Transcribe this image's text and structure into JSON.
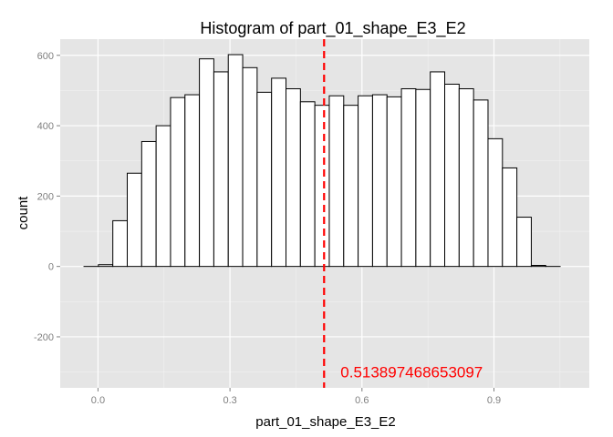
{
  "chart_data": {
    "type": "bar",
    "title": "Histogram of  part_01_shape_E3_E2",
    "xlabel": "part_01_shape_E3_E2",
    "ylabel": "count",
    "xlim": [
      -0.0859,
      1.1167
    ],
    "ylim": [
      -345,
      646
    ],
    "x_ticks": [
      0.0,
      0.3,
      0.6,
      0.9
    ],
    "x_tick_labels": [
      "0.0",
      "0.3",
      "0.6",
      "0.9"
    ],
    "y_ticks": [
      -200,
      0,
      200,
      400,
      600
    ],
    "y_tick_labels": [
      "-200",
      "0",
      "200",
      "400",
      "600"
    ],
    "x_minor_ticks": [
      -0.15,
      0.15,
      0.45,
      0.75,
      1.05
    ],
    "y_minor_ticks": [
      -300,
      -100,
      100,
      300,
      500
    ],
    "grid": true,
    "legend": "none",
    "bin_width": 0.0328,
    "bins": {
      "start": [
        -0.0319,
        0.0009,
        0.0337,
        0.0665,
        0.0993,
        0.1321,
        0.1649,
        0.1977,
        0.2305,
        0.2633,
        0.2961,
        0.3289,
        0.3617,
        0.3945,
        0.4273,
        0.4601,
        0.4929,
        0.5257,
        0.5585,
        0.5913,
        0.6241,
        0.6569,
        0.6897,
        0.7225,
        0.7553,
        0.7881,
        0.8209,
        0.8537,
        0.8865,
        0.9193,
        0.9521,
        0.9849,
        1.0177
      ],
      "counts": [
        0,
        5,
        130,
        265,
        355,
        400,
        480,
        488,
        590,
        553,
        602,
        565,
        495,
        535,
        505,
        468,
        458,
        485,
        458,
        485,
        488,
        482,
        505,
        503,
        553,
        518,
        505,
        473,
        363,
        280,
        140,
        3,
        0
      ]
    },
    "vline": {
      "x": 0.513897468653097,
      "label": "0.513897468653097",
      "color": "#ff0000",
      "style": "dashed"
    },
    "colors": {
      "panel": "#e5e5e5",
      "grid": "#ffffff",
      "bar_fill": "#ffffff",
      "bar_outline": "#000000"
    }
  }
}
